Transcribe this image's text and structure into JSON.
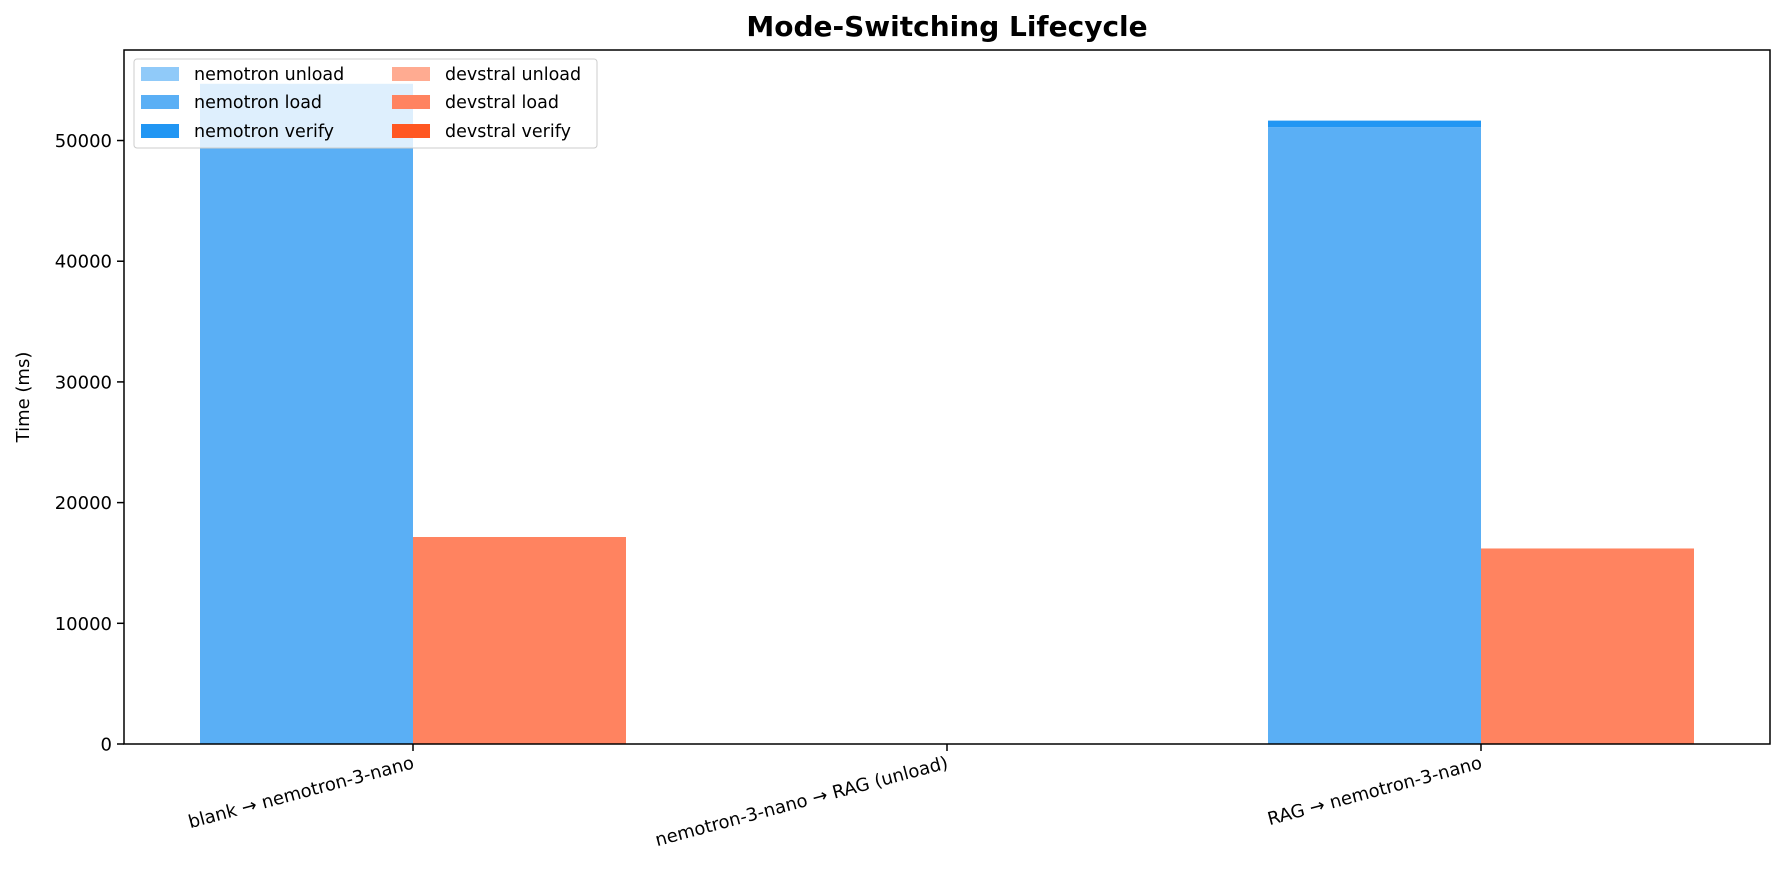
{
  "chart_data": {
    "type": "bar",
    "stacked": true,
    "grouped": true,
    "title": "Mode-Switching Lifecycle",
    "xlabel": "",
    "ylabel": "Time (ms)",
    "ylim": [
      0,
      57500
    ],
    "yticks": [
      0,
      10000,
      20000,
      30000,
      40000,
      50000
    ],
    "grid": false,
    "legend": {
      "placement": "top-left",
      "columns": 2
    },
    "categories": [
      "blank → nemotron-3-nano",
      "nemotron-3-nano → RAG (unload)",
      "RAG → nemotron-3-nano"
    ],
    "groups": [
      {
        "name": "nemotron",
        "series": [
          {
            "name": "nemotron unload",
            "color": "#90caf9",
            "values": [
              0,
              0,
              0
            ]
          },
          {
            "name": "nemotron load",
            "color": "#5aaff5",
            "values": [
              54700,
              0,
              51100
            ]
          },
          {
            "name": "nemotron verify",
            "color": "#2196f3",
            "values": [
              0,
              0,
              550
            ]
          }
        ]
      },
      {
        "name": "devstral",
        "series": [
          {
            "name": "devstral unload",
            "color": "#ffab91",
            "values": [
              0,
              0,
              0
            ]
          },
          {
            "name": "devstral load",
            "color": "#ff8360",
            "values": [
              17150,
              0,
              16200
            ]
          },
          {
            "name": "devstral verify",
            "color": "#ff5722",
            "values": [
              0,
              0,
              0
            ]
          }
        ]
      }
    ]
  }
}
